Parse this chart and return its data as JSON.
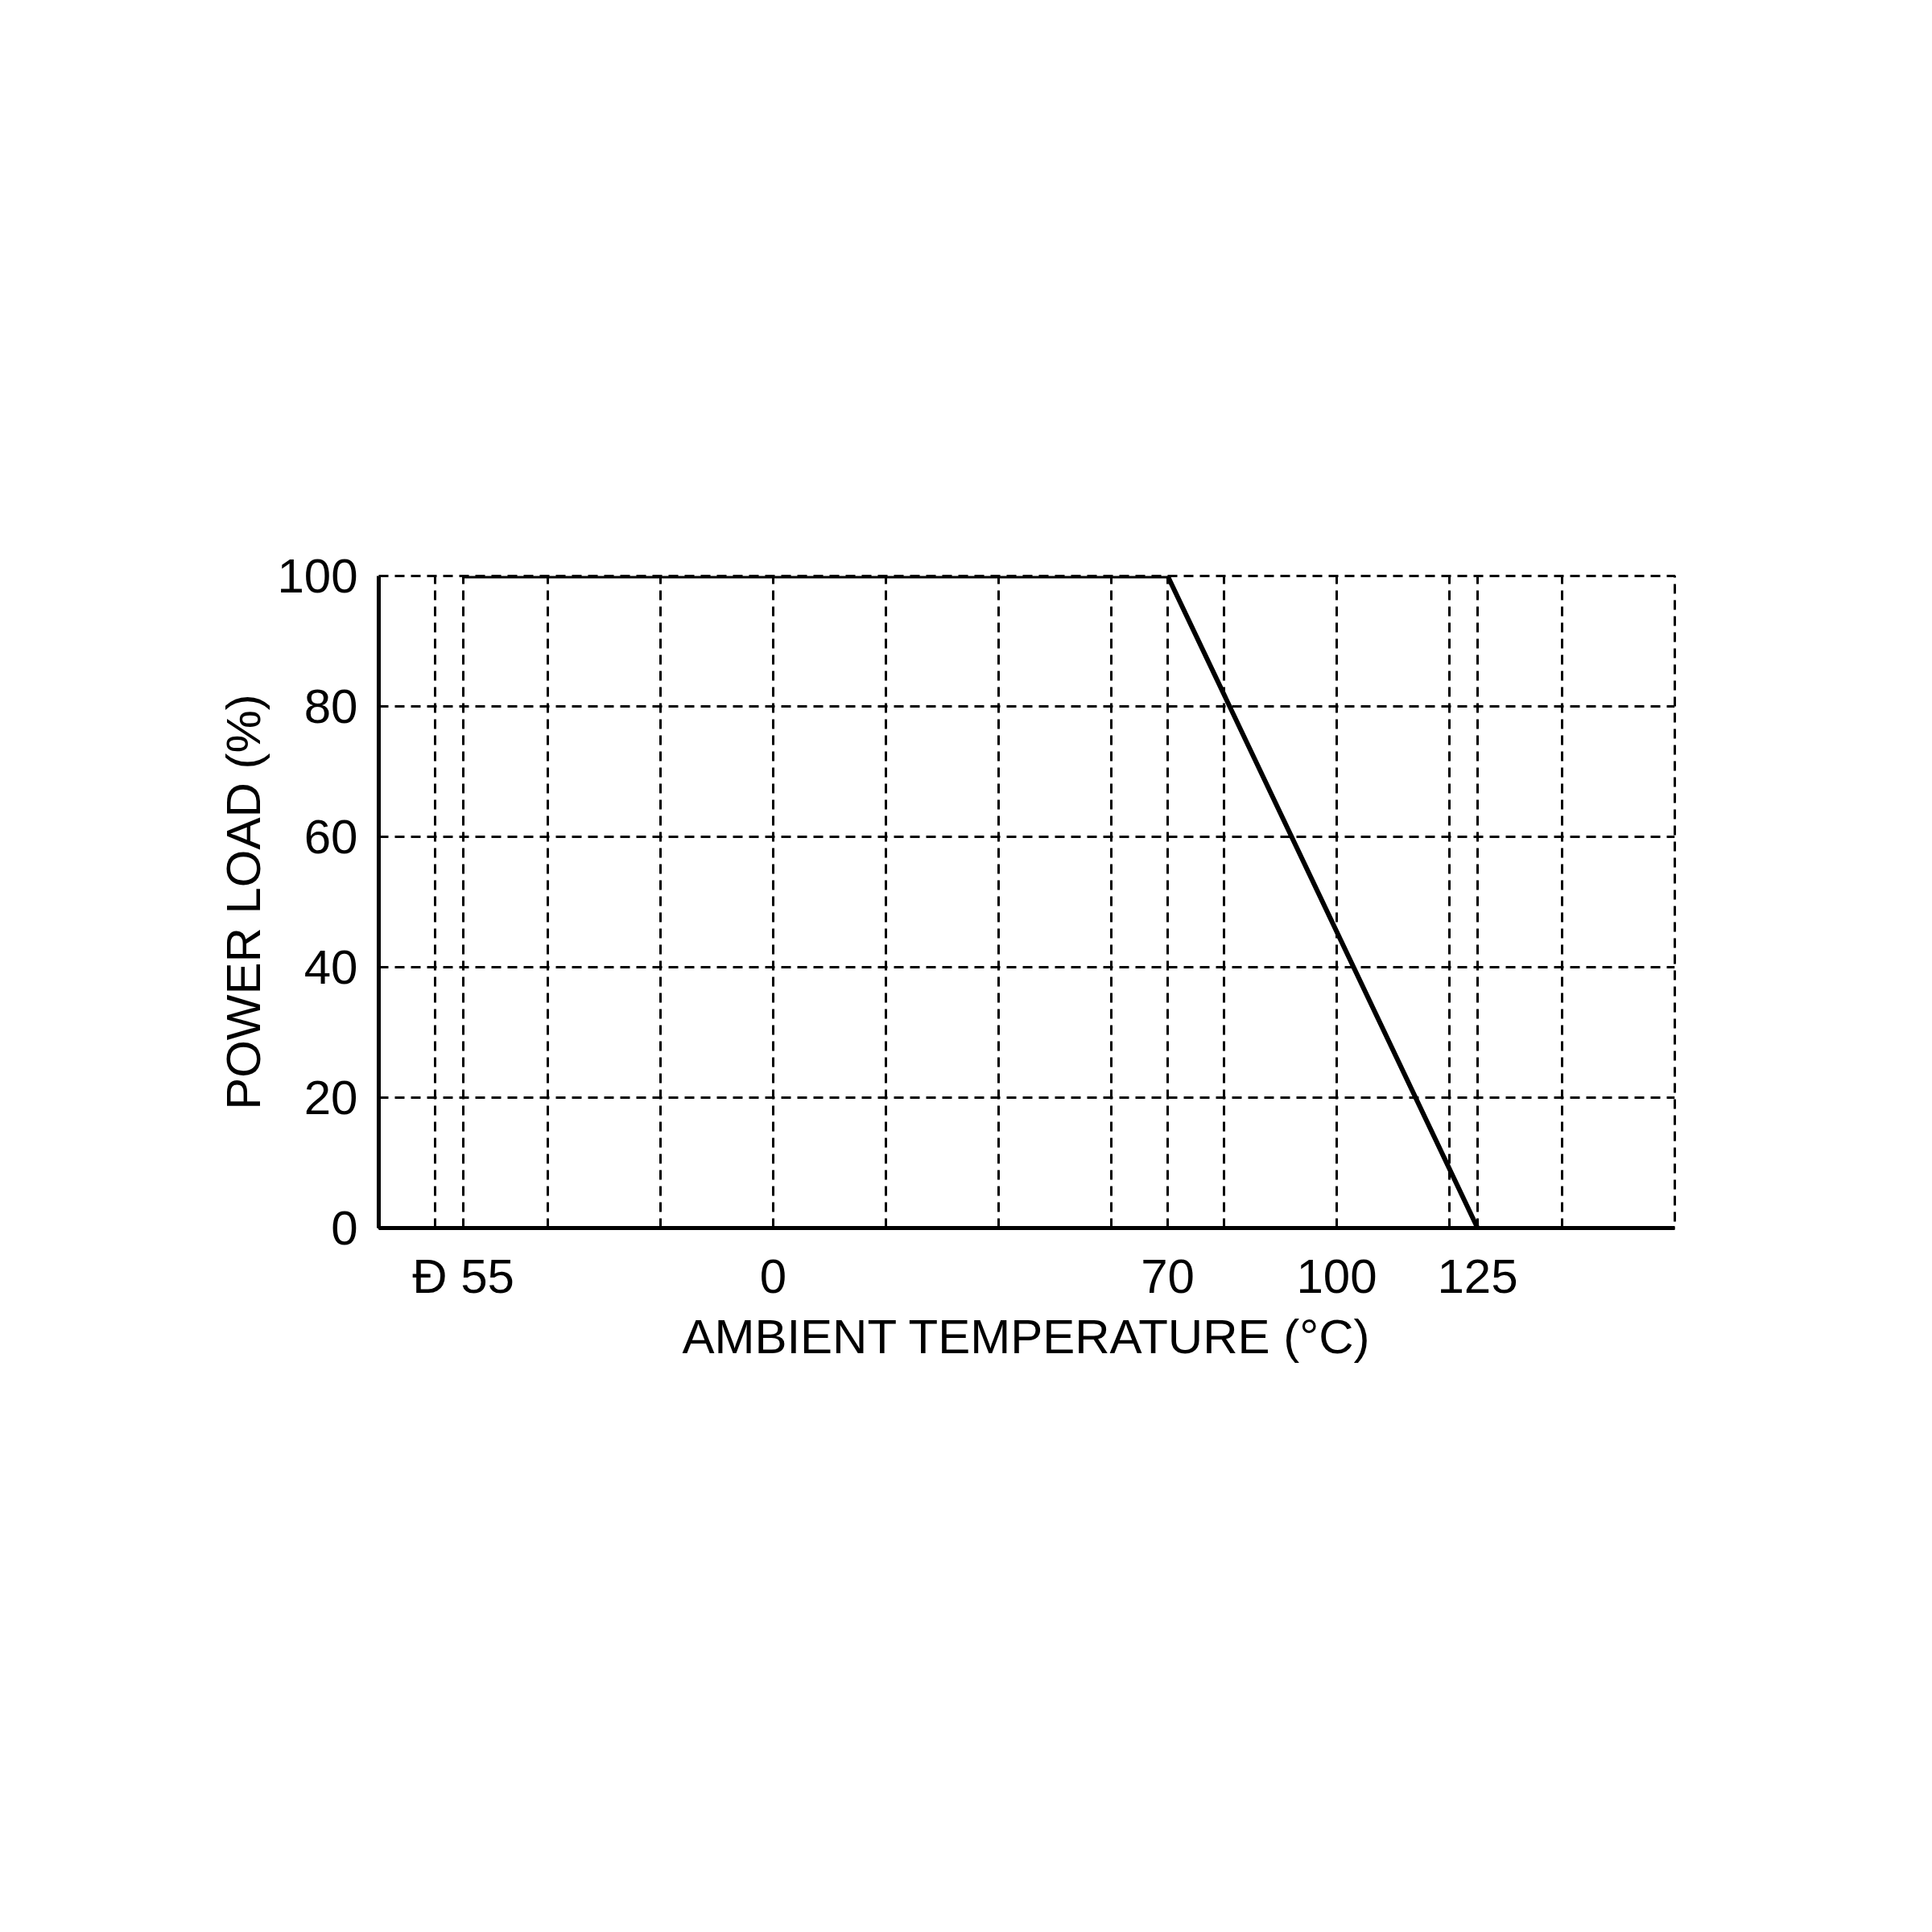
{
  "chart_data": {
    "type": "line",
    "xlabel": "AMBIENT TEMPERATURE (°C)",
    "ylabel": "POWER LOAD (%)",
    "x": [
      -55,
      70,
      125
    ],
    "series": [
      {
        "color": "#000000",
        "values": [
          100,
          100,
          0
        ]
      }
    ],
    "xlim": [
      -70,
      160
    ],
    "ylim": [
      0,
      100
    ],
    "xticks": [
      {
        "value": -60,
        "label": null
      },
      {
        "value": -55,
        "label": "Đ 55"
      },
      {
        "value": -40,
        "label": null
      },
      {
        "value": -20,
        "label": null
      },
      0,
      {
        "value": 20,
        "label": null
      },
      {
        "value": 40,
        "label": null
      },
      {
        "value": 60,
        "label": null
      },
      70,
      {
        "value": 80,
        "label": null
      },
      100,
      {
        "value": 120,
        "label": null
      },
      125,
      {
        "value": 140,
        "label": null
      },
      {
        "value": 160,
        "label": null
      }
    ],
    "yticks": [
      0,
      20,
      40,
      60,
      80,
      100
    ],
    "grid": true,
    "line_style": "solid"
  }
}
